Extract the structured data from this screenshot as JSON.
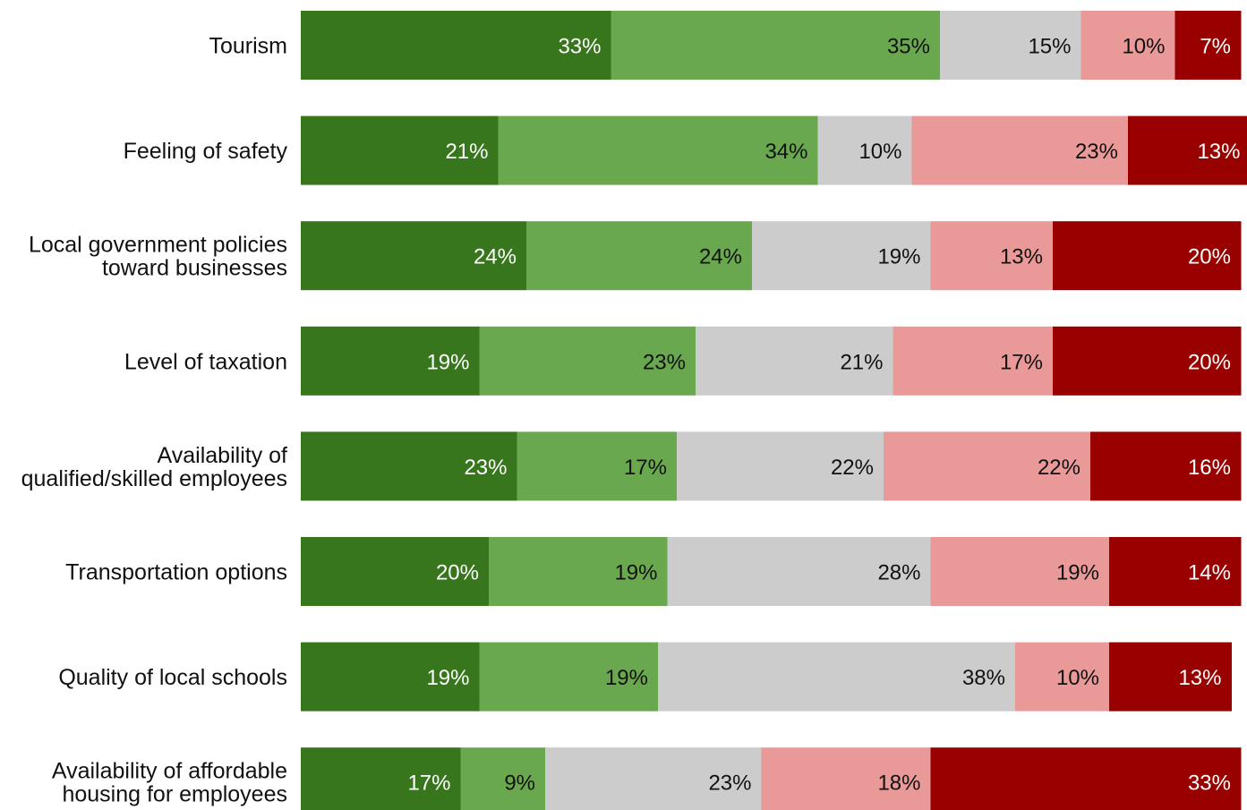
{
  "chart_data": {
    "type": "bar",
    "orientation": "horizontal",
    "stacked": true,
    "percent_stacked": true,
    "categories": [
      [
        "Tourism"
      ],
      [
        "Feeling of safety"
      ],
      [
        "Local government policies",
        "toward businesses"
      ],
      [
        "Level of taxation"
      ],
      [
        "Availability of",
        "qualified/skilled employees"
      ],
      [
        "Transportation options"
      ],
      [
        "Quality of local schools"
      ],
      [
        "Availability of affordable",
        "housing for employees"
      ]
    ],
    "series": [
      {
        "values": [
          33,
          21,
          24,
          19,
          23,
          20,
          19,
          17
        ]
      },
      {
        "values": [
          35,
          34,
          24,
          23,
          17,
          19,
          19,
          9
        ]
      },
      {
        "values": [
          15,
          10,
          19,
          21,
          22,
          28,
          38,
          23
        ]
      },
      {
        "values": [
          10,
          23,
          13,
          17,
          22,
          19,
          10,
          18
        ]
      },
      {
        "values": [
          7,
          13,
          20,
          20,
          16,
          14,
          13,
          33
        ]
      }
    ],
    "colors": [
      "#38761d",
      "#6aa84f",
      "#cccccc",
      "#ea9999",
      "#990000"
    ],
    "label_colors": [
      "#ffffff",
      "#111111",
      "#111111",
      "#111111",
      "#ffffff"
    ],
    "value_suffix": "%",
    "xlim": [
      0,
      100
    ],
    "data_labels": true,
    "legend": "none",
    "grid": false
  }
}
